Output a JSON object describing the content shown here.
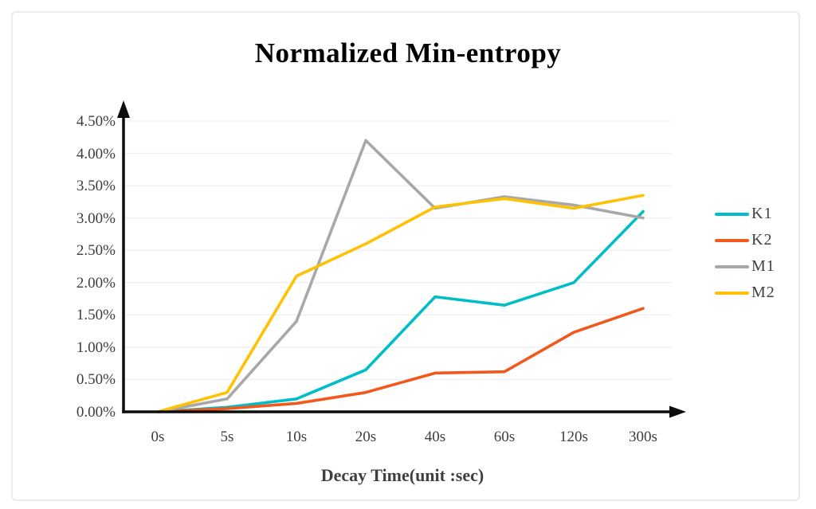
{
  "window": {
    "background": "#ffffff",
    "frame_border_color": "#ebebee"
  },
  "chart_data": {
    "type": "line",
    "title": "Normalized Min-entropy",
    "xlabel": "Decay Time(unit :sec)",
    "ylabel": "",
    "categories": [
      "0s",
      "5s",
      "10s",
      "20s",
      "40s",
      "60s",
      "120s",
      "300s"
    ],
    "y_ticks": [
      "0.00%",
      "0.50%",
      "1.00%",
      "1.50%",
      "2.00%",
      "2.50%",
      "3.00%",
      "3.50%",
      "4.00%",
      "4.50%"
    ],
    "ylim": [
      0,
      4.5
    ],
    "y_step": 0.5,
    "grid": true,
    "legend_position": "right",
    "series": [
      {
        "name": "K1",
        "color": "#00bdc7",
        "values": [
          0.0,
          0.07,
          0.2,
          0.65,
          1.78,
          1.65,
          2.0,
          3.1
        ]
      },
      {
        "name": "K2",
        "color": "#f2581b",
        "values": [
          0.0,
          0.05,
          0.13,
          0.3,
          0.6,
          0.62,
          1.23,
          1.6
        ]
      },
      {
        "name": "M1",
        "color": "#a8a8a8",
        "values": [
          0.0,
          0.2,
          1.4,
          4.2,
          3.15,
          3.33,
          3.2,
          3.0
        ]
      },
      {
        "name": "M2",
        "color": "#ffc104",
        "values": [
          0.0,
          0.3,
          2.1,
          2.6,
          3.17,
          3.3,
          3.15,
          3.35
        ]
      }
    ],
    "colors": {
      "axis": "#0d0d0d",
      "gridline": "#f1f1f3",
      "tick_label": "#3d3d3d",
      "title": "#000000",
      "axis_title": "#3f3f3f"
    }
  }
}
